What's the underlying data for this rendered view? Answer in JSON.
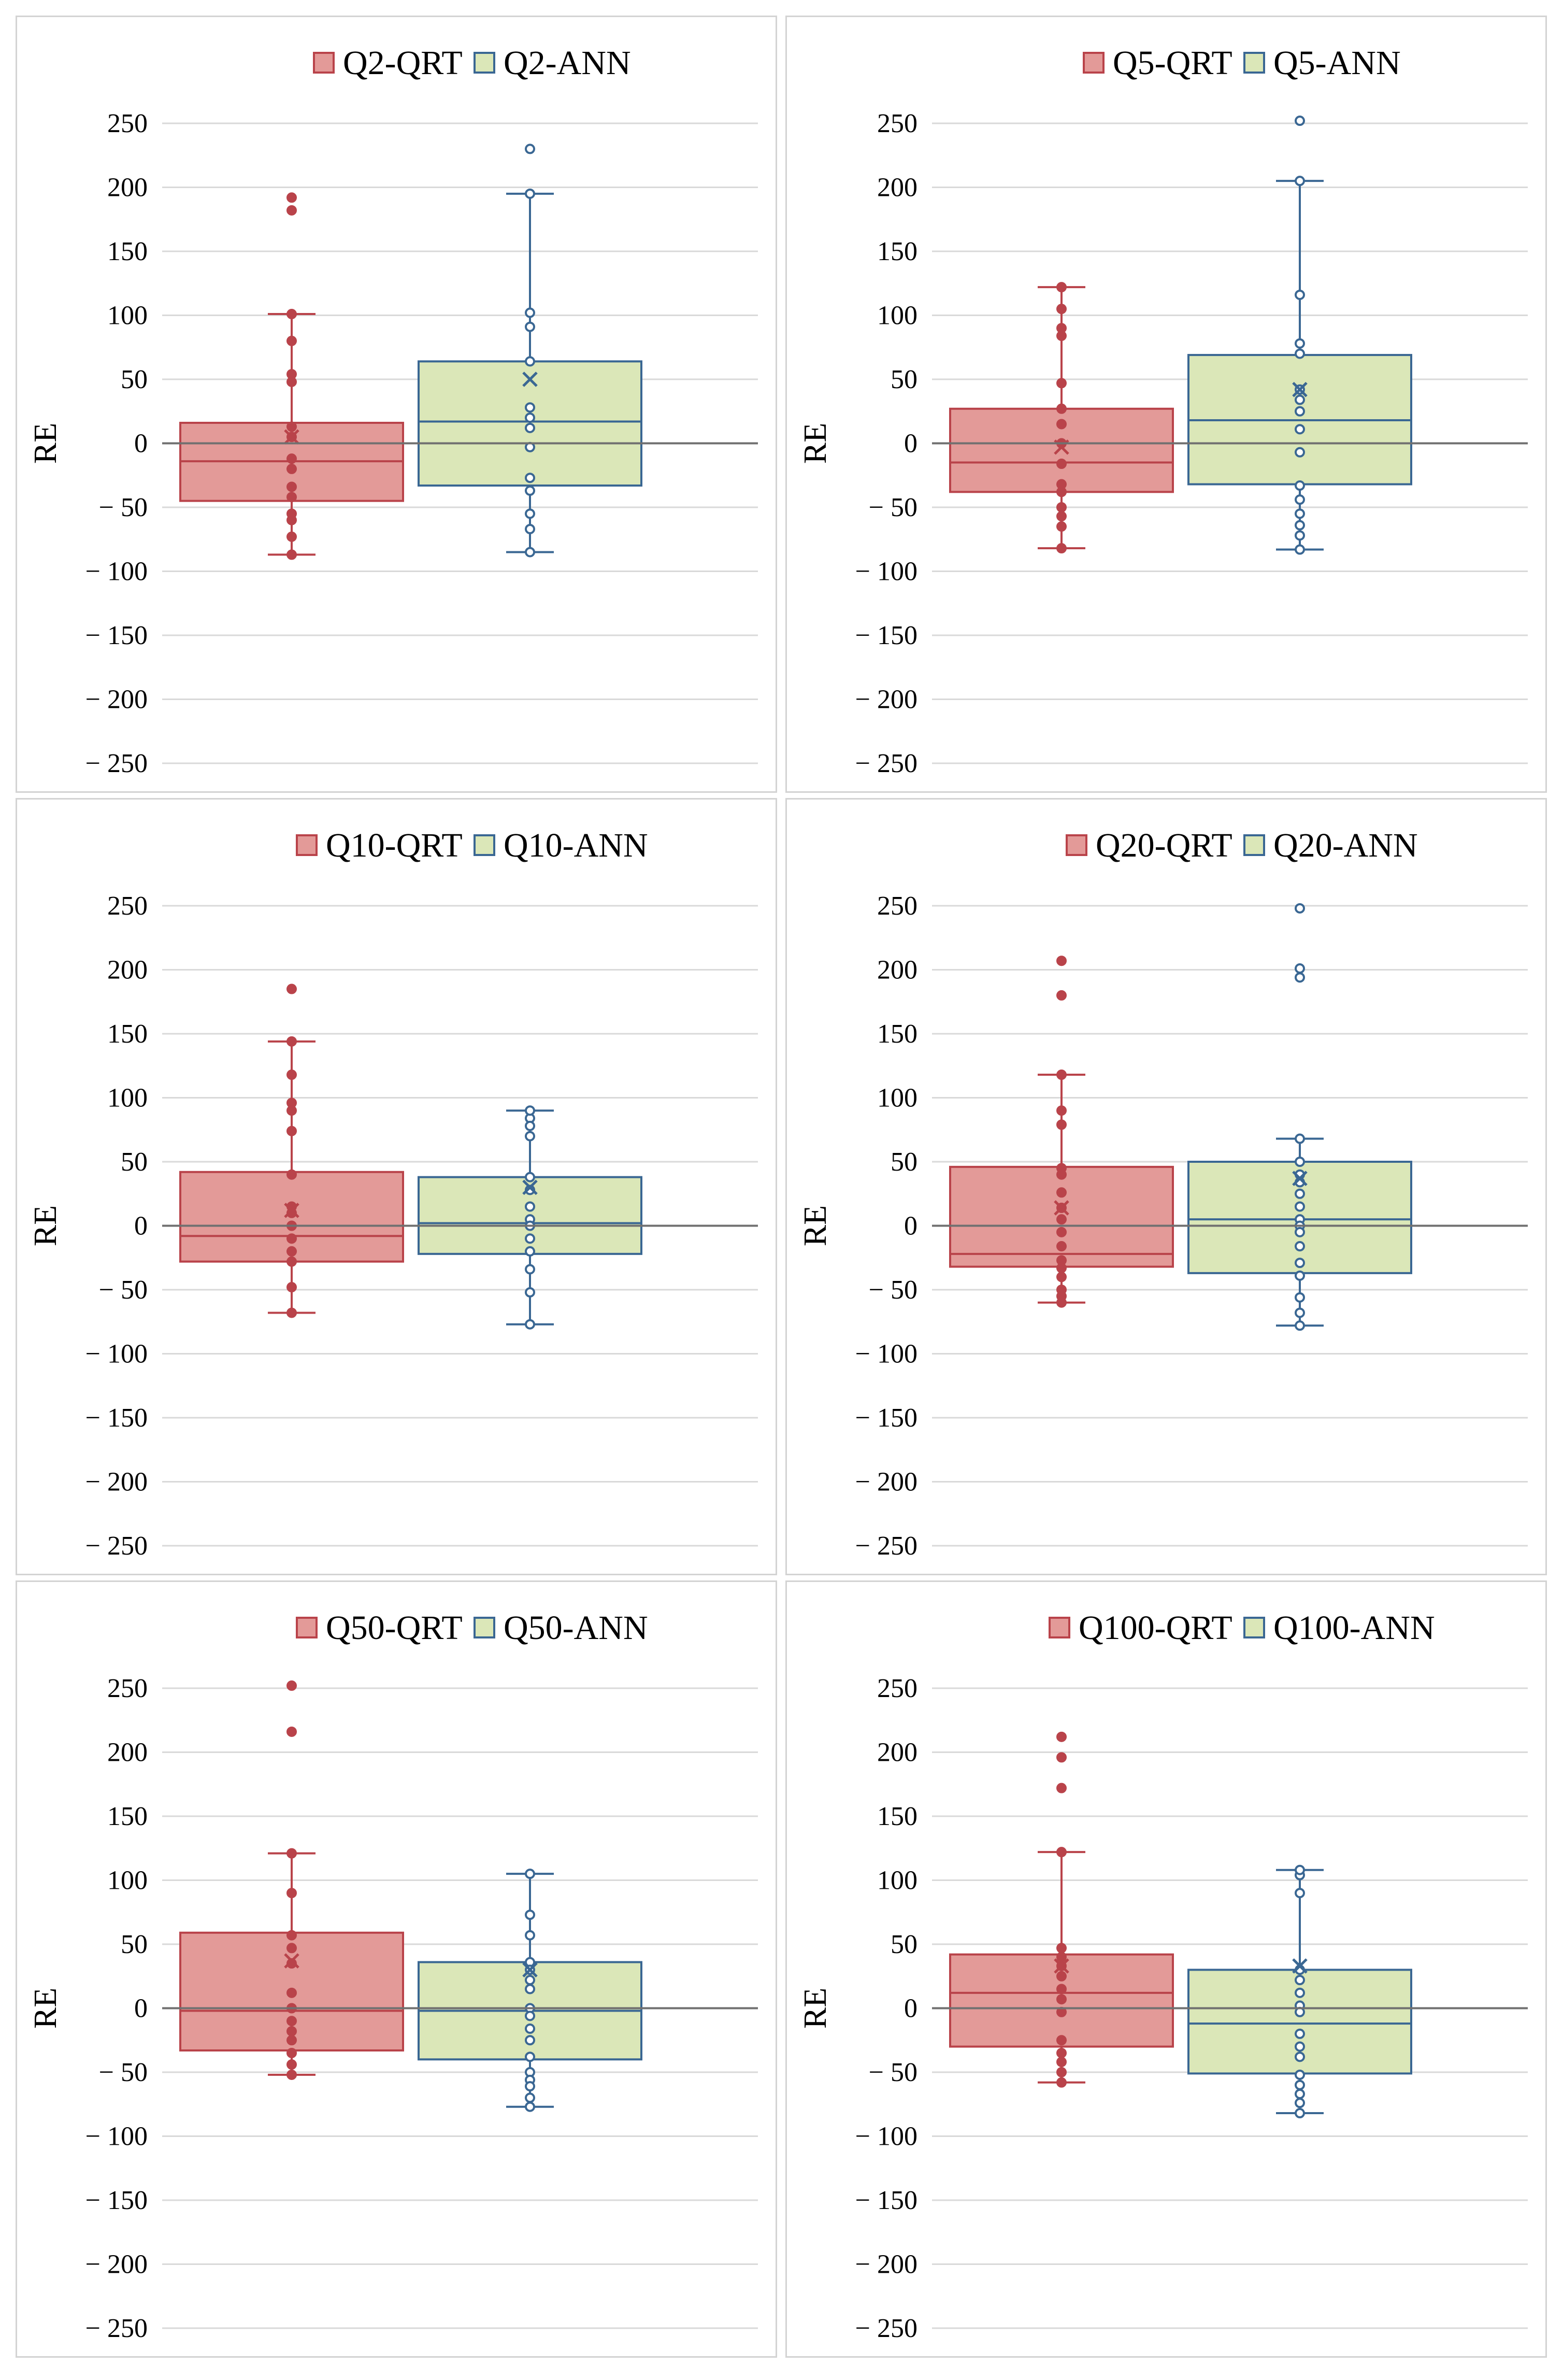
{
  "colors": {
    "qrt_fill": "#e39a98",
    "qrt_stroke": "#b9434a",
    "ann_fill": "#dbe7b8",
    "ann_stroke": "#3a6793",
    "gridline": "#d9d9d9",
    "zero_line": "#707070"
  },
  "chart_data": [
    {
      "type": "boxplot",
      "title": "",
      "xlabel": "",
      "ylabel": "RE",
      "ylim": [
        -250,
        250
      ],
      "yticks": [
        250,
        200,
        150,
        100,
        50,
        0,
        -50,
        -100,
        -150,
        -200,
        -250
      ],
      "yticklabels": [
        "250",
        "200",
        "150",
        "100",
        "50",
        "0",
        "− 50",
        "− 100",
        "− 150",
        "− 200",
        "− 250"
      ],
      "legend_position": "top-center",
      "series": [
        {
          "name": "Q2-QRT",
          "q1": -45,
          "median": -14,
          "q3": 16,
          "whisker_low": -87,
          "whisker_high": 101,
          "mean": 5,
          "points": [
            192,
            182,
            80,
            54,
            48,
            13,
            5,
            -12,
            -20,
            -34,
            -42,
            -55,
            -60,
            -73,
            -87,
            101
          ]
        },
        {
          "name": "Q2-ANN",
          "q1": -33,
          "median": 17,
          "q3": 64,
          "whisker_low": -85,
          "whisker_high": 195,
          "mean": 50,
          "points": [
            230,
            102,
            91,
            64,
            28,
            20,
            12,
            -3,
            -27,
            -37,
            -55,
            -67,
            -85,
            195
          ]
        }
      ]
    },
    {
      "type": "boxplot",
      "title": "",
      "xlabel": "",
      "ylabel": "RE",
      "ylim": [
        -250,
        250
      ],
      "yticks": [
        250,
        200,
        150,
        100,
        50,
        0,
        -50,
        -100,
        -150,
        -200,
        -250
      ],
      "yticklabels": [
        "250",
        "200",
        "150",
        "100",
        "50",
        "0",
        "− 50",
        "− 100",
        "− 150",
        "− 200",
        "− 250"
      ],
      "legend_position": "top-center",
      "series": [
        {
          "name": "Q5-QRT",
          "q1": -38,
          "median": -15,
          "q3": 27,
          "whisker_low": -82,
          "whisker_high": 122,
          "mean": -3,
          "points": [
            105,
            90,
            84,
            47,
            27,
            15,
            0,
            -16,
            -32,
            -38,
            -50,
            -57,
            -65,
            -82,
            122
          ]
        },
        {
          "name": "Q5-ANN",
          "q1": -32,
          "median": 18,
          "q3": 69,
          "whisker_low": -83,
          "whisker_high": 205,
          "mean": 42,
          "points": [
            252,
            116,
            78,
            70,
            42,
            34,
            25,
            11,
            -7,
            -33,
            -44,
            -55,
            -64,
            -72,
            -83,
            205
          ]
        }
      ]
    },
    {
      "type": "boxplot",
      "title": "",
      "xlabel": "",
      "ylabel": "RE",
      "ylim": [
        -250,
        250
      ],
      "yticks": [
        250,
        200,
        150,
        100,
        50,
        0,
        -50,
        -100,
        -150,
        -200,
        -250
      ],
      "yticklabels": [
        "250",
        "200",
        "150",
        "100",
        "50",
        "0",
        "− 50",
        "− 100",
        "− 150",
        "− 200",
        "− 250"
      ],
      "legend_position": "top-center",
      "series": [
        {
          "name": "Q10-QRT",
          "q1": -28,
          "median": -8,
          "q3": 42,
          "whisker_low": -68,
          "whisker_high": 144,
          "mean": 12,
          "points": [
            185,
            118,
            96,
            90,
            74,
            40,
            15,
            10,
            0,
            -10,
            -20,
            -28,
            -48,
            -68,
            144
          ]
        },
        {
          "name": "Q10-ANN",
          "q1": -22,
          "median": 2,
          "q3": 38,
          "whisker_low": -77,
          "whisker_high": 90,
          "mean": 30,
          "points": [
            84,
            78,
            70,
            38,
            28,
            15,
            5,
            0,
            -10,
            -20,
            -34,
            -52,
            -77,
            90
          ]
        }
      ]
    },
    {
      "type": "boxplot",
      "title": "",
      "xlabel": "",
      "ylabel": "RE",
      "ylim": [
        -250,
        250
      ],
      "yticks": [
        250,
        200,
        150,
        100,
        50,
        0,
        -50,
        -100,
        -150,
        -200,
        -250
      ],
      "yticklabels": [
        "250",
        "200",
        "150",
        "100",
        "50",
        "0",
        "− 50",
        "− 100",
        "− 150",
        "− 200",
        "− 250"
      ],
      "legend_position": "top-center",
      "series": [
        {
          "name": "Q20-QRT",
          "q1": -32,
          "median": -22,
          "q3": 46,
          "whisker_low": -60,
          "whisker_high": 118,
          "mean": 14,
          "points": [
            207,
            180,
            90,
            79,
            45,
            40,
            26,
            14,
            5,
            -5,
            -16,
            -27,
            -33,
            -40,
            -50,
            -55,
            -60,
            118
          ]
        },
        {
          "name": "Q20-ANN",
          "q1": -37,
          "median": 5,
          "q3": 50,
          "whisker_low": -78,
          "whisker_high": 68,
          "mean": 37,
          "points": [
            248,
            201,
            194,
            50,
            40,
            34,
            25,
            15,
            5,
            0,
            -5,
            -16,
            -29,
            -39,
            -56,
            -68,
            -78,
            68
          ]
        }
      ]
    },
    {
      "type": "boxplot",
      "title": "",
      "xlabel": "",
      "ylabel": "RE",
      "ylim": [
        -250,
        250
      ],
      "yticks": [
        250,
        200,
        150,
        100,
        50,
        0,
        -50,
        -100,
        -150,
        -200,
        -250
      ],
      "yticklabels": [
        "250",
        "200",
        "150",
        "100",
        "50",
        "0",
        "− 50",
        "− 100",
        "− 150",
        "− 200",
        "− 250"
      ],
      "legend_position": "top-center",
      "series": [
        {
          "name": "Q50-QRT",
          "q1": -33,
          "median": -2,
          "q3": 59,
          "whisker_low": -52,
          "whisker_high": 121,
          "mean": 37,
          "points": [
            252,
            216,
            90,
            57,
            47,
            35,
            12,
            0,
            -10,
            -18,
            -25,
            -35,
            -44,
            -52,
            121
          ]
        },
        {
          "name": "Q50-ANN",
          "q1": -40,
          "median": -2,
          "q3": 36,
          "whisker_low": -77,
          "whisker_high": 105,
          "mean": 30,
          "points": [
            73,
            57,
            36,
            30,
            22,
            15,
            0,
            -6,
            -16,
            -25,
            -38,
            -50,
            -56,
            -61,
            -70,
            -77,
            105
          ]
        }
      ]
    },
    {
      "type": "boxplot",
      "title": "",
      "xlabel": "",
      "ylabel": "RE",
      "ylim": [
        -250,
        250
      ],
      "yticks": [
        250,
        200,
        150,
        100,
        50,
        0,
        -50,
        -100,
        -150,
        -200,
        -250
      ],
      "yticklabels": [
        "250",
        "200",
        "150",
        "100",
        "50",
        "0",
        "− 50",
        "− 100",
        "− 150",
        "− 200",
        "− 250"
      ],
      "legend_position": "top-center",
      "series": [
        {
          "name": "Q100-QRT",
          "q1": -30,
          "median": 12,
          "q3": 42,
          "whisker_low": -58,
          "whisker_high": 122,
          "mean": 33,
          "points": [
            212,
            196,
            172,
            47,
            40,
            33,
            25,
            15,
            7,
            -3,
            -25,
            -35,
            -42,
            -50,
            -58,
            122
          ]
        },
        {
          "name": "Q100-ANN",
          "q1": -51,
          "median": -12,
          "q3": 30,
          "whisker_low": -82,
          "whisker_high": 108,
          "mean": 33,
          "points": [
            104,
            90,
            30,
            22,
            12,
            2,
            -3,
            -20,
            -30,
            -38,
            -52,
            -60,
            -67,
            -74,
            -82,
            108
          ]
        }
      ]
    }
  ]
}
